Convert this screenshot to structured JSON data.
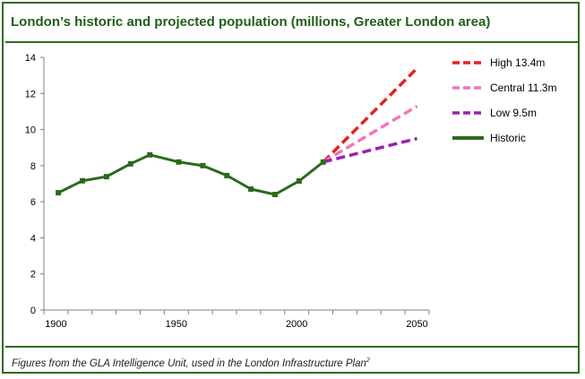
{
  "title": "London’s historic and projected population (millions, Greater London area)",
  "caption": "Figures from the GLA Intelligence Unit, used in the London Infrastructure Plan",
  "caption_sup": "2",
  "chart_data": {
    "type": "line",
    "title": "London’s historic and projected population (millions, Greater London area)",
    "xlabel": "",
    "ylabel": "",
    "xlim": [
      1895,
      2055
    ],
    "ylim": [
      0,
      14
    ],
    "x_ticks": [
      1900,
      1950,
      2000,
      2050
    ],
    "y_ticks": [
      0,
      2,
      4,
      6,
      8,
      10,
      12,
      14
    ],
    "x_minor_step": 10,
    "grid": false,
    "legend_position": "top-right",
    "series": [
      {
        "name": "High 13.4m",
        "style": "dashed",
        "color": "#e32222",
        "x": [
          2011,
          2050
        ],
        "y": [
          8.2,
          13.4
        ]
      },
      {
        "name": "Central 11.3m",
        "style": "dashed",
        "color": "#f075b8",
        "x": [
          2011,
          2050
        ],
        "y": [
          8.2,
          11.3
        ]
      },
      {
        "name": "Low 9.5m",
        "style": "dashed",
        "color": "#9c20b0",
        "x": [
          2011,
          2050
        ],
        "y": [
          8.2,
          9.5
        ]
      },
      {
        "name": "Historic",
        "style": "solid",
        "color": "#2b6a1c",
        "x": [
          1901,
          1911,
          1921,
          1931,
          1939,
          1951,
          1961,
          1971,
          1981,
          1991,
          2001,
          2011
        ],
        "y": [
          6.5,
          7.16,
          7.39,
          8.1,
          8.6,
          8.2,
          8.0,
          7.45,
          6.7,
          6.4,
          7.15,
          8.2
        ]
      }
    ]
  }
}
